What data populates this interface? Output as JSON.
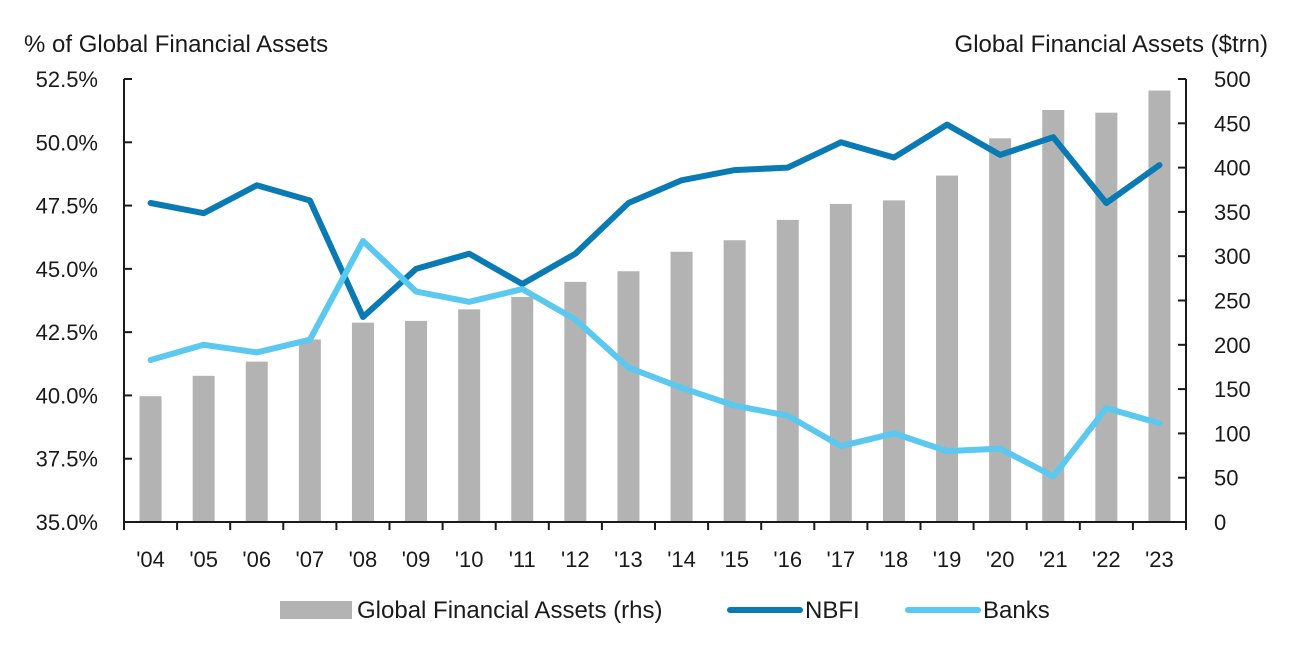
{
  "chart_data": {
    "type": "bar+line",
    "categories": [
      "'04",
      "'05",
      "'06",
      "'07",
      "'08",
      "'09",
      "'10",
      "'11",
      "'12",
      "'13",
      "'14",
      "'15",
      "'16",
      "'17",
      "'18",
      "'19",
      "'20",
      "'21",
      "'22",
      "'23"
    ],
    "left_axis": {
      "title": "% of Global Financial Assets",
      "ylim": [
        35.0,
        52.5
      ],
      "ticks": [
        35.0,
        37.5,
        40.0,
        42.5,
        45.0,
        47.5,
        50.0,
        52.5
      ],
      "tick_labels": [
        "35.0%",
        "37.5%",
        "40.0%",
        "42.5%",
        "45.0%",
        "47.5%",
        "50.0%",
        "52.5%"
      ]
    },
    "right_axis": {
      "title": "Global Financial Assets ($trn)",
      "ylim": [
        0,
        500
      ],
      "ticks": [
        0,
        50,
        100,
        150,
        200,
        250,
        300,
        350,
        400,
        450,
        500
      ],
      "tick_labels": [
        "0",
        "50",
        "100",
        "150",
        "200",
        "250",
        "300",
        "350",
        "400",
        "450",
        "500"
      ]
    },
    "series": [
      {
        "name": "Global Financial Assets (rhs)",
        "kind": "bar",
        "axis": "right",
        "color": "#b3b3b3",
        "values": [
          142,
          165,
          181,
          206,
          225,
          227,
          240,
          254,
          271,
          283,
          305,
          318,
          341,
          359,
          363,
          391,
          433,
          465,
          462,
          487
        ]
      },
      {
        "name": "NBFI",
        "kind": "line",
        "axis": "left",
        "color": "#0a7ab4",
        "values": [
          47.6,
          47.2,
          48.3,
          47.7,
          43.1,
          45.0,
          45.6,
          44.4,
          45.6,
          47.6,
          48.5,
          48.9,
          49.0,
          50.0,
          49.4,
          50.7,
          49.5,
          50.2,
          47.6,
          49.1
        ]
      },
      {
        "name": "Banks",
        "kind": "line",
        "axis": "left",
        "color": "#5bc8f0",
        "values": [
          41.4,
          42.0,
          41.7,
          42.2,
          46.1,
          44.1,
          43.7,
          44.2,
          43.0,
          41.1,
          40.3,
          39.6,
          39.2,
          38.0,
          38.5,
          37.8,
          37.9,
          36.8,
          39.5,
          38.9
        ]
      }
    ],
    "legend": {
      "position": "bottom-center",
      "items": [
        "Global Financial Assets (rhs)",
        "NBFI",
        "Banks"
      ]
    }
  }
}
